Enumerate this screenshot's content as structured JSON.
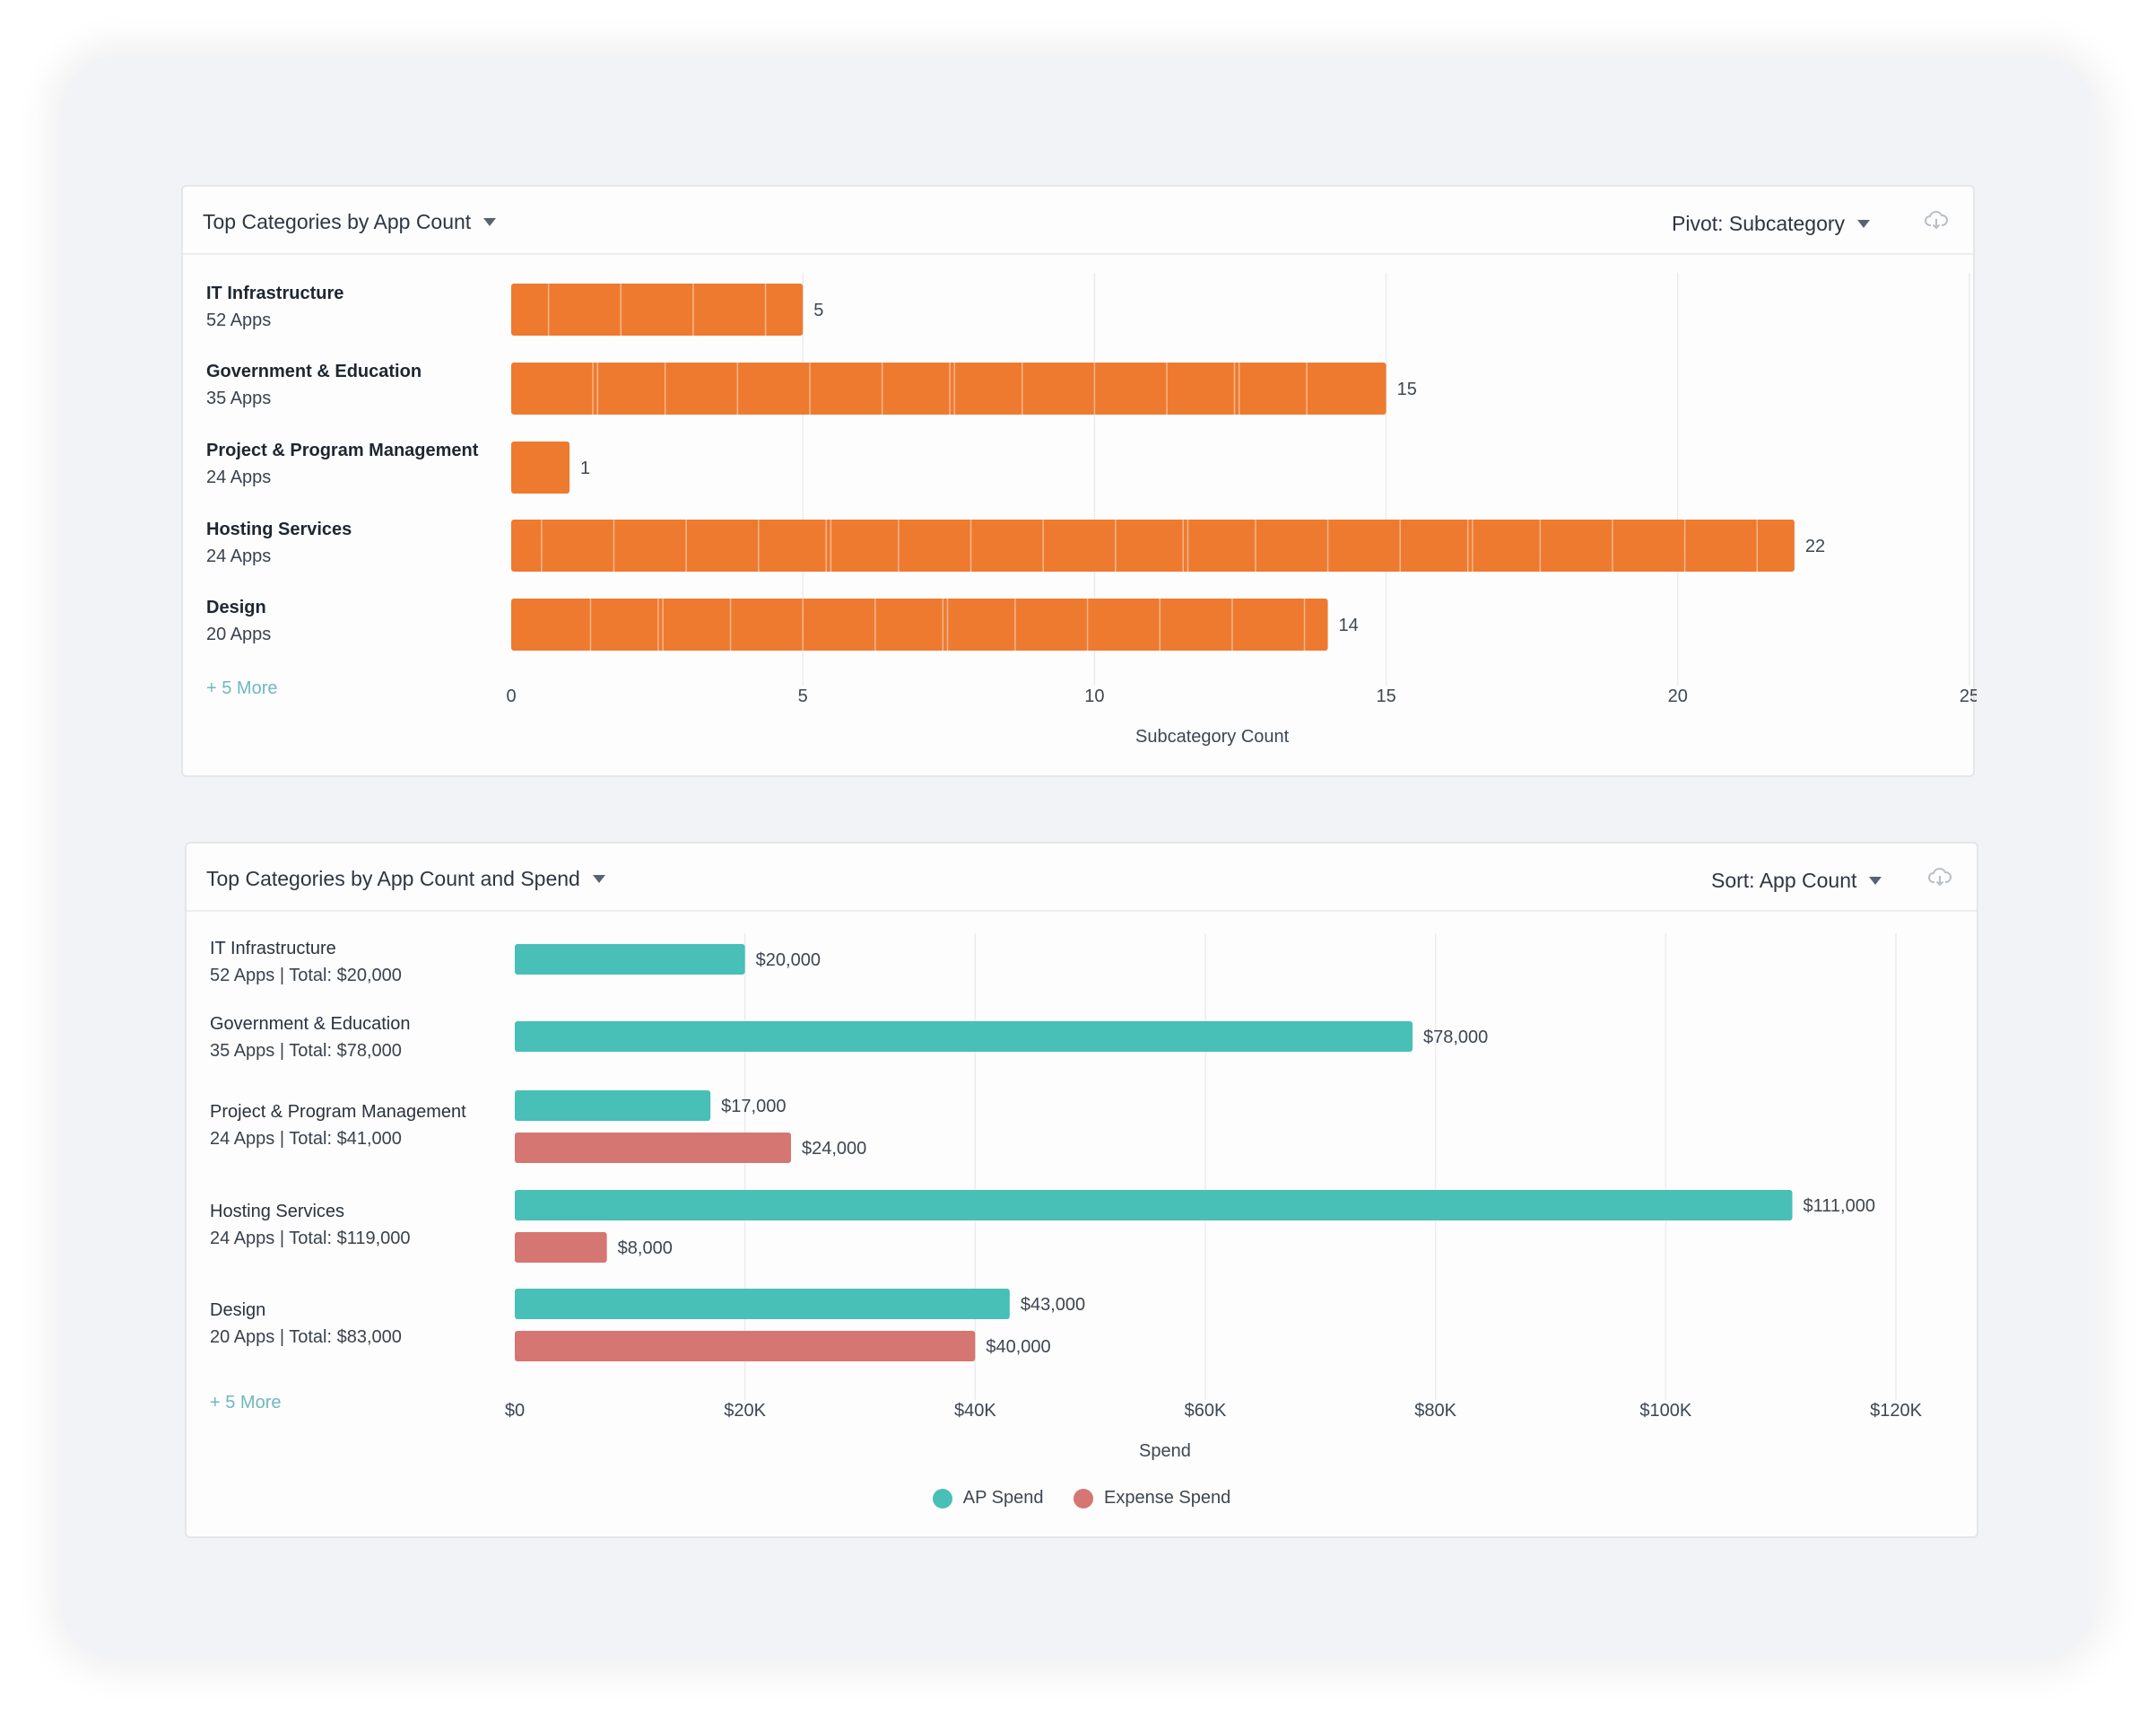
{
  "colors": {
    "orange": "#ee7a30",
    "teal": "#48bfb7",
    "salmon": "#d57672",
    "grid": "#ececef"
  },
  "card1": {
    "title": "Top Categories by App Count",
    "pivot_label": "Pivot: Subcategory",
    "more_label": "+ 5 More",
    "rows": [
      {
        "name": "IT Infrastructure",
        "sub": "52 Apps"
      },
      {
        "name": "Government & Education",
        "sub": "35 Apps"
      },
      {
        "name": "Project & Program Management",
        "sub": "24 Apps"
      },
      {
        "name": "Hosting Services",
        "sub": "24 Apps"
      },
      {
        "name": "Design",
        "sub": "20 Apps"
      }
    ]
  },
  "card2": {
    "title": "Top Categories by App Count and Spend",
    "sort_label": "Sort: App Count",
    "more_label": "+ 5 More",
    "rows": [
      {
        "name": "IT Infrastructure",
        "sub": "52 Apps | Total: $20,000"
      },
      {
        "name": "Government & Education",
        "sub": "35 Apps | Total: $78,000"
      },
      {
        "name": "Project & Program Management",
        "sub": "24 Apps | Total: $41,000"
      },
      {
        "name": "Hosting Services",
        "sub": "24 Apps | Total: $119,000"
      },
      {
        "name": "Design",
        "sub": "20 Apps | Total: $83,000"
      }
    ],
    "legend": [
      {
        "label": "AP Spend",
        "color": "#48bfb7"
      },
      {
        "label": "Expense Spend",
        "color": "#d57672"
      }
    ]
  },
  "chart_data": [
    {
      "type": "bar",
      "orientation": "horizontal",
      "title": "Top Categories by App Count",
      "categories": [
        "IT Infrastructure",
        "Government & Education",
        "Project & Program Management",
        "Hosting Services",
        "Design"
      ],
      "values": [
        5,
        15,
        1,
        22,
        14
      ],
      "value_labels": [
        "5",
        "15",
        "1",
        "22",
        "14"
      ],
      "xlabel": "Subcategory Count",
      "xlim": [
        0,
        25
      ],
      "xticks": [
        0,
        5,
        10,
        15,
        20,
        25
      ],
      "xtick_labels": [
        "0",
        "5",
        "10",
        "15",
        "20",
        "25"
      ],
      "grid": true
    },
    {
      "type": "bar",
      "orientation": "horizontal",
      "title": "Top Categories by App Count and Spend",
      "categories": [
        "IT Infrastructure",
        "Government & Education",
        "Project & Program Management",
        "Hosting Services",
        "Design"
      ],
      "series": [
        {
          "name": "AP Spend",
          "values": [
            20000,
            78000,
            17000,
            111000,
            43000
          ],
          "labels": [
            "$20,000",
            "$78,000",
            "$17,000",
            "$111,000",
            "$43,000"
          ]
        },
        {
          "name": "Expense Spend",
          "values": [
            null,
            null,
            24000,
            8000,
            40000
          ],
          "labels": [
            null,
            null,
            "$24,000",
            "$8,000",
            "$40,000"
          ]
        }
      ],
      "xlabel": "Spend",
      "xlim": [
        0,
        120000
      ],
      "xticks": [
        0,
        20000,
        40000,
        60000,
        80000,
        100000,
        120000
      ],
      "xtick_labels": [
        "$0",
        "$20K",
        "$40K",
        "$60K",
        "$80K",
        "$100K",
        "$120K"
      ],
      "legend_position": "bottom",
      "grid": true
    }
  ]
}
